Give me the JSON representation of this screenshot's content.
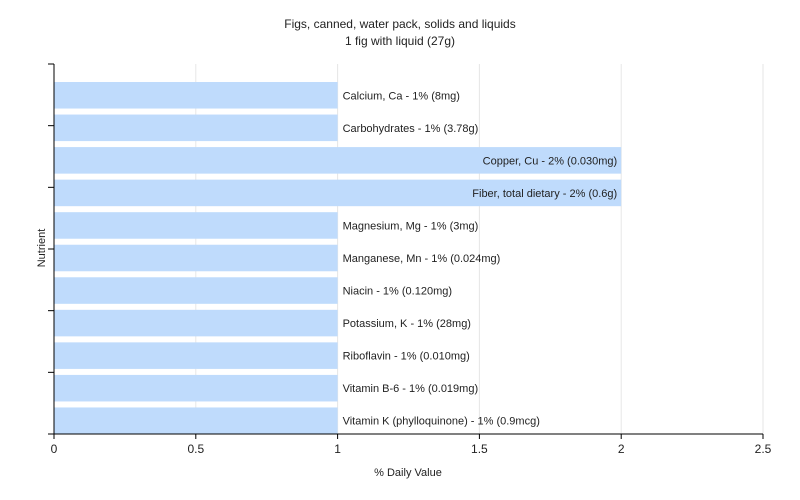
{
  "chart_data": {
    "type": "bar",
    "orientation": "horizontal",
    "title": "Figs, canned, water pack, solids and liquids",
    "subtitle": "1 fig with liquid (27g)",
    "xlabel": "% Daily Value",
    "ylabel": "Nutrient",
    "xlim": [
      0,
      2.5
    ],
    "xticks": [
      "0",
      "0.5",
      "1",
      "1.5",
      "2",
      "2.5"
    ],
    "grid": true,
    "bar_color": "#bfdbfc",
    "categories": [
      "Calcium, Ca - 1% (8mg)",
      "Carbohydrates - 1% (3.78g)",
      "Copper, Cu - 2% (0.030mg)",
      "Fiber, total dietary - 2% (0.6g)",
      "Magnesium, Mg - 1% (3mg)",
      "Manganese, Mn - 1% (0.024mg)",
      "Niacin - 1% (0.120mg)",
      "Potassium, K - 1% (28mg)",
      "Riboflavin - 1% (0.010mg)",
      "Vitamin B-6 - 1% (0.019mg)",
      "Vitamin K (phylloquinone) - 1% (0.9mcg)"
    ],
    "values": [
      1,
      1,
      2,
      2,
      1,
      1,
      1,
      1,
      1,
      1,
      1
    ]
  }
}
